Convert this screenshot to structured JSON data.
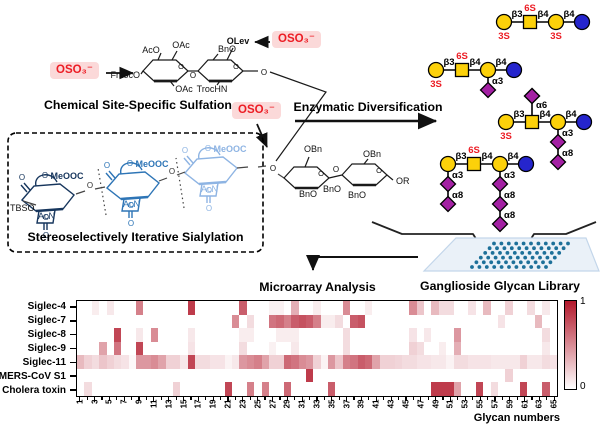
{
  "scheme": {
    "oso3": "OSO₃⁻",
    "atoms": {
      "o": "O"
    },
    "sulfation": {
      "title": "Chemical Site-Specific Sulfation",
      "labels": {
        "aco": "AcO",
        "oac_top": "OAc",
        "bno": "BnO",
        "olev": "OLev",
        "fmoco": "FmocO",
        "oac_bottom": "OAc",
        "trochn": "TrocHN"
      }
    },
    "sialylation": {
      "title": "Stereoselectively Iterative Sialylation",
      "units": [
        {
          "meooc": "MeOOC",
          "acn": "AcN",
          "tbso": "TBSO",
          "color": "#17365d"
        },
        {
          "meooc": "MeOOC",
          "acn": "AcN",
          "color": "#2e75b6"
        },
        {
          "meooc": "MeOOC",
          "acn": "AcN",
          "color": "#8eb4e3"
        }
      ]
    },
    "acceptor": {
      "labels": {
        "obn1": "OBn",
        "obn2": "OBn",
        "bno1": "BnO",
        "bno2": "BnO",
        "bno3": "BnO",
        "or": "OR"
      }
    },
    "enzymatic_title": "Enzymatic Diversification",
    "library_label": "Ganglioside Glycan Library"
  },
  "glycan_colors": {
    "gal": "#fcd10a",
    "glc": "#2525cd",
    "neu": "#a320a3",
    "red": "#ec1c24"
  },
  "glycans": [
    {
      "nodes": [
        {
          "shape": "circle",
          "color": "gal",
          "below": "3S"
        },
        {
          "shape": "square",
          "color": "gal",
          "above": "6S"
        },
        {
          "shape": "circle",
          "color": "gal",
          "below": "3S"
        },
        {
          "shape": "circle",
          "color": "glc"
        }
      ],
      "links": [
        "β3",
        "β4",
        "β4"
      ],
      "branches": []
    },
    {
      "nodes": [
        {
          "shape": "circle",
          "color": "gal",
          "below": "3S"
        },
        {
          "shape": "square",
          "color": "gal",
          "above": "6S"
        },
        {
          "shape": "circle",
          "color": "gal"
        },
        {
          "shape": "circle",
          "color": "glc"
        }
      ],
      "links": [
        "β3",
        "β4",
        "β4"
      ],
      "branches": [
        {
          "node": 2,
          "links": [
            "α3"
          ]
        }
      ]
    },
    {
      "nodes": [
        {
          "shape": "circle",
          "color": "gal",
          "below": "3S"
        },
        {
          "shape": "square",
          "color": "gal"
        },
        {
          "shape": "circle",
          "color": "gal"
        },
        {
          "shape": "circle",
          "color": "glc"
        }
      ],
      "links": [
        "β3",
        "β4",
        "β4"
      ],
      "top": {
        "node": 1,
        "label": "α6"
      },
      "branches": [
        {
          "node": 2,
          "links": [
            "α3",
            "α8"
          ]
        }
      ]
    },
    {
      "nodes": [
        {
          "shape": "circle",
          "color": "gal"
        },
        {
          "shape": "square",
          "color": "gal",
          "above": "6S"
        },
        {
          "shape": "circle",
          "color": "gal"
        },
        {
          "shape": "circle",
          "color": "glc"
        }
      ],
      "links": [
        "β3",
        "β4",
        "β4"
      ],
      "branches": [
        {
          "node": 0,
          "links": [
            "α3",
            "α8"
          ]
        },
        {
          "node": 2,
          "links": [
            "α3",
            "α8",
            "α8"
          ]
        }
      ]
    }
  ],
  "colors": {
    "heat_max": "#b2182b",
    "dot": "#1d7099",
    "slide_fill": "#eaf1f8",
    "slide_stroke": "#c3d6ea"
  },
  "chart_data": {
    "type": "heatmap",
    "title": "Microarray Analysis",
    "xlabel": "Glycan numbers",
    "rows": [
      "Siglec-4",
      "Siglec-7",
      "Siglec-8",
      "Siglec-9",
      "Siglec-11",
      "MERS-CoV S1",
      "Cholera toxin"
    ],
    "x_range": [
      1,
      65
    ],
    "x_ticks": [
      1,
      3,
      5,
      7,
      9,
      11,
      13,
      15,
      17,
      19,
      21,
      23,
      25,
      27,
      29,
      31,
      33,
      35,
      37,
      39,
      41,
      43,
      45,
      47,
      49,
      51,
      53,
      55,
      57,
      59,
      61,
      63,
      65
    ],
    "colorbar": {
      "min": 0,
      "max": 1,
      "min_label": "0",
      "max_label": "1",
      "color_max": "#b2182b"
    },
    "values": [
      [
        0,
        0,
        0.08,
        0,
        0.1,
        0,
        0,
        0,
        0.55,
        0,
        0,
        0,
        0,
        0,
        0,
        0.85,
        0,
        0,
        0,
        0,
        0,
        0,
        0.7,
        0,
        0,
        0,
        0.06,
        0.06,
        0,
        0.35,
        0,
        0,
        0.08,
        0,
        0,
        0,
        0.5,
        0,
        0,
        0.08,
        0,
        0,
        0,
        0,
        0,
        0.5,
        0.25,
        0,
        0.3,
        0.15,
        0.15,
        0,
        0,
        0.12,
        0,
        0.3,
        0,
        0,
        0.2,
        0,
        0,
        0.15,
        0,
        0.1,
        0
      ],
      [
        0,
        0,
        0,
        0,
        0,
        0,
        0,
        0,
        0,
        0,
        0,
        0,
        0,
        0,
        0,
        0,
        0,
        0,
        0,
        0,
        0,
        0.5,
        0,
        0.15,
        0,
        0,
        0.6,
        0.65,
        0.55,
        0.7,
        0.75,
        0.7,
        0.55,
        0.08,
        0.08,
        0.15,
        0,
        0.7,
        0.75,
        0,
        0,
        0,
        0,
        0,
        0,
        0,
        0,
        0,
        0,
        0,
        0,
        0,
        0,
        0,
        0,
        0,
        0,
        0.12,
        0,
        0,
        0,
        0,
        0.3,
        0,
        0
      ],
      [
        0,
        0,
        0,
        0,
        0,
        0.8,
        0,
        0,
        0.1,
        0,
        0.5,
        0,
        0,
        0,
        0,
        0.1,
        0,
        0,
        0,
        0,
        0,
        0,
        0.08,
        0.08,
        0,
        0,
        0,
        0.08,
        0.08,
        0.08,
        0,
        0,
        0,
        0,
        0,
        0,
        0.15,
        0,
        0,
        0,
        0,
        0,
        0,
        0,
        0,
        0.12,
        0,
        0.1,
        0,
        0,
        0,
        0.45,
        0,
        0,
        0,
        0,
        0,
        0,
        0,
        0,
        0,
        0,
        0,
        0.15,
        0
      ],
      [
        0,
        0,
        0,
        0.4,
        0,
        0.6,
        0,
        0,
        0.8,
        0,
        0,
        0,
        0,
        0,
        0,
        0.12,
        0,
        0,
        0,
        0,
        0,
        0,
        0.15,
        0,
        0,
        0,
        0.06,
        0,
        0,
        0.1,
        0,
        0,
        0,
        0,
        0,
        0,
        0.15,
        0,
        0,
        0,
        0,
        0,
        0,
        0,
        0,
        0.2,
        0.15,
        0,
        0,
        0.08,
        0,
        0.35,
        0,
        0,
        0,
        0,
        0,
        0,
        0,
        0,
        0,
        0,
        0,
        0.1,
        0
      ],
      [
        0.3,
        0.2,
        0.15,
        0.25,
        0.2,
        0.15,
        0.12,
        0.03,
        0.45,
        0.45,
        0.5,
        0.4,
        0.2,
        0.2,
        0.1,
        0.8,
        0.15,
        0.15,
        0.12,
        0.12,
        0.05,
        0.1,
        0.45,
        0.5,
        0.55,
        0.4,
        0.2,
        0.2,
        0.65,
        0.6,
        0.5,
        0.45,
        0.2,
        0.05,
        0.45,
        0.25,
        0.55,
        0.6,
        0.7,
        0.65,
        0.4,
        0.2,
        0.2,
        0.18,
        0.15,
        0.15,
        0.12,
        0.12,
        0.1,
        0.1,
        0.05,
        0.15,
        0.15,
        0.12,
        0.12,
        0.12,
        0.1,
        0.1,
        0.1,
        0.1,
        0.2,
        0.1,
        0.1,
        0.15,
        0.12
      ],
      [
        0,
        0,
        0,
        0,
        0,
        0,
        0,
        0,
        0,
        0,
        0,
        0,
        0,
        0,
        0,
        0,
        0,
        0,
        0,
        0,
        0,
        0,
        0,
        0,
        0,
        0,
        0,
        0,
        0,
        0,
        0,
        0.85,
        0,
        0,
        0,
        0,
        0,
        0,
        0,
        0,
        0,
        0,
        0,
        0,
        0,
        0,
        0,
        0,
        0,
        0,
        0,
        0,
        0,
        0,
        0,
        0,
        0,
        0,
        0.2,
        0,
        0,
        0,
        0,
        0,
        0
      ],
      [
        0,
        0.15,
        0,
        0,
        0,
        0,
        0,
        0,
        0,
        0,
        0,
        0,
        0,
        0.2,
        0,
        0,
        0,
        0,
        0,
        0,
        0.8,
        0,
        0,
        0.55,
        0,
        0.55,
        0,
        0,
        0.65,
        0,
        0,
        0,
        0,
        0,
        0.7,
        0,
        0,
        0,
        0,
        0,
        0,
        0,
        0,
        0,
        0,
        0,
        0,
        0,
        0.85,
        0.85,
        0.85,
        0.4,
        0,
        0,
        0.8,
        0,
        0.15,
        0,
        0,
        0,
        0.8,
        0,
        0,
        0.7,
        0
      ]
    ]
  }
}
